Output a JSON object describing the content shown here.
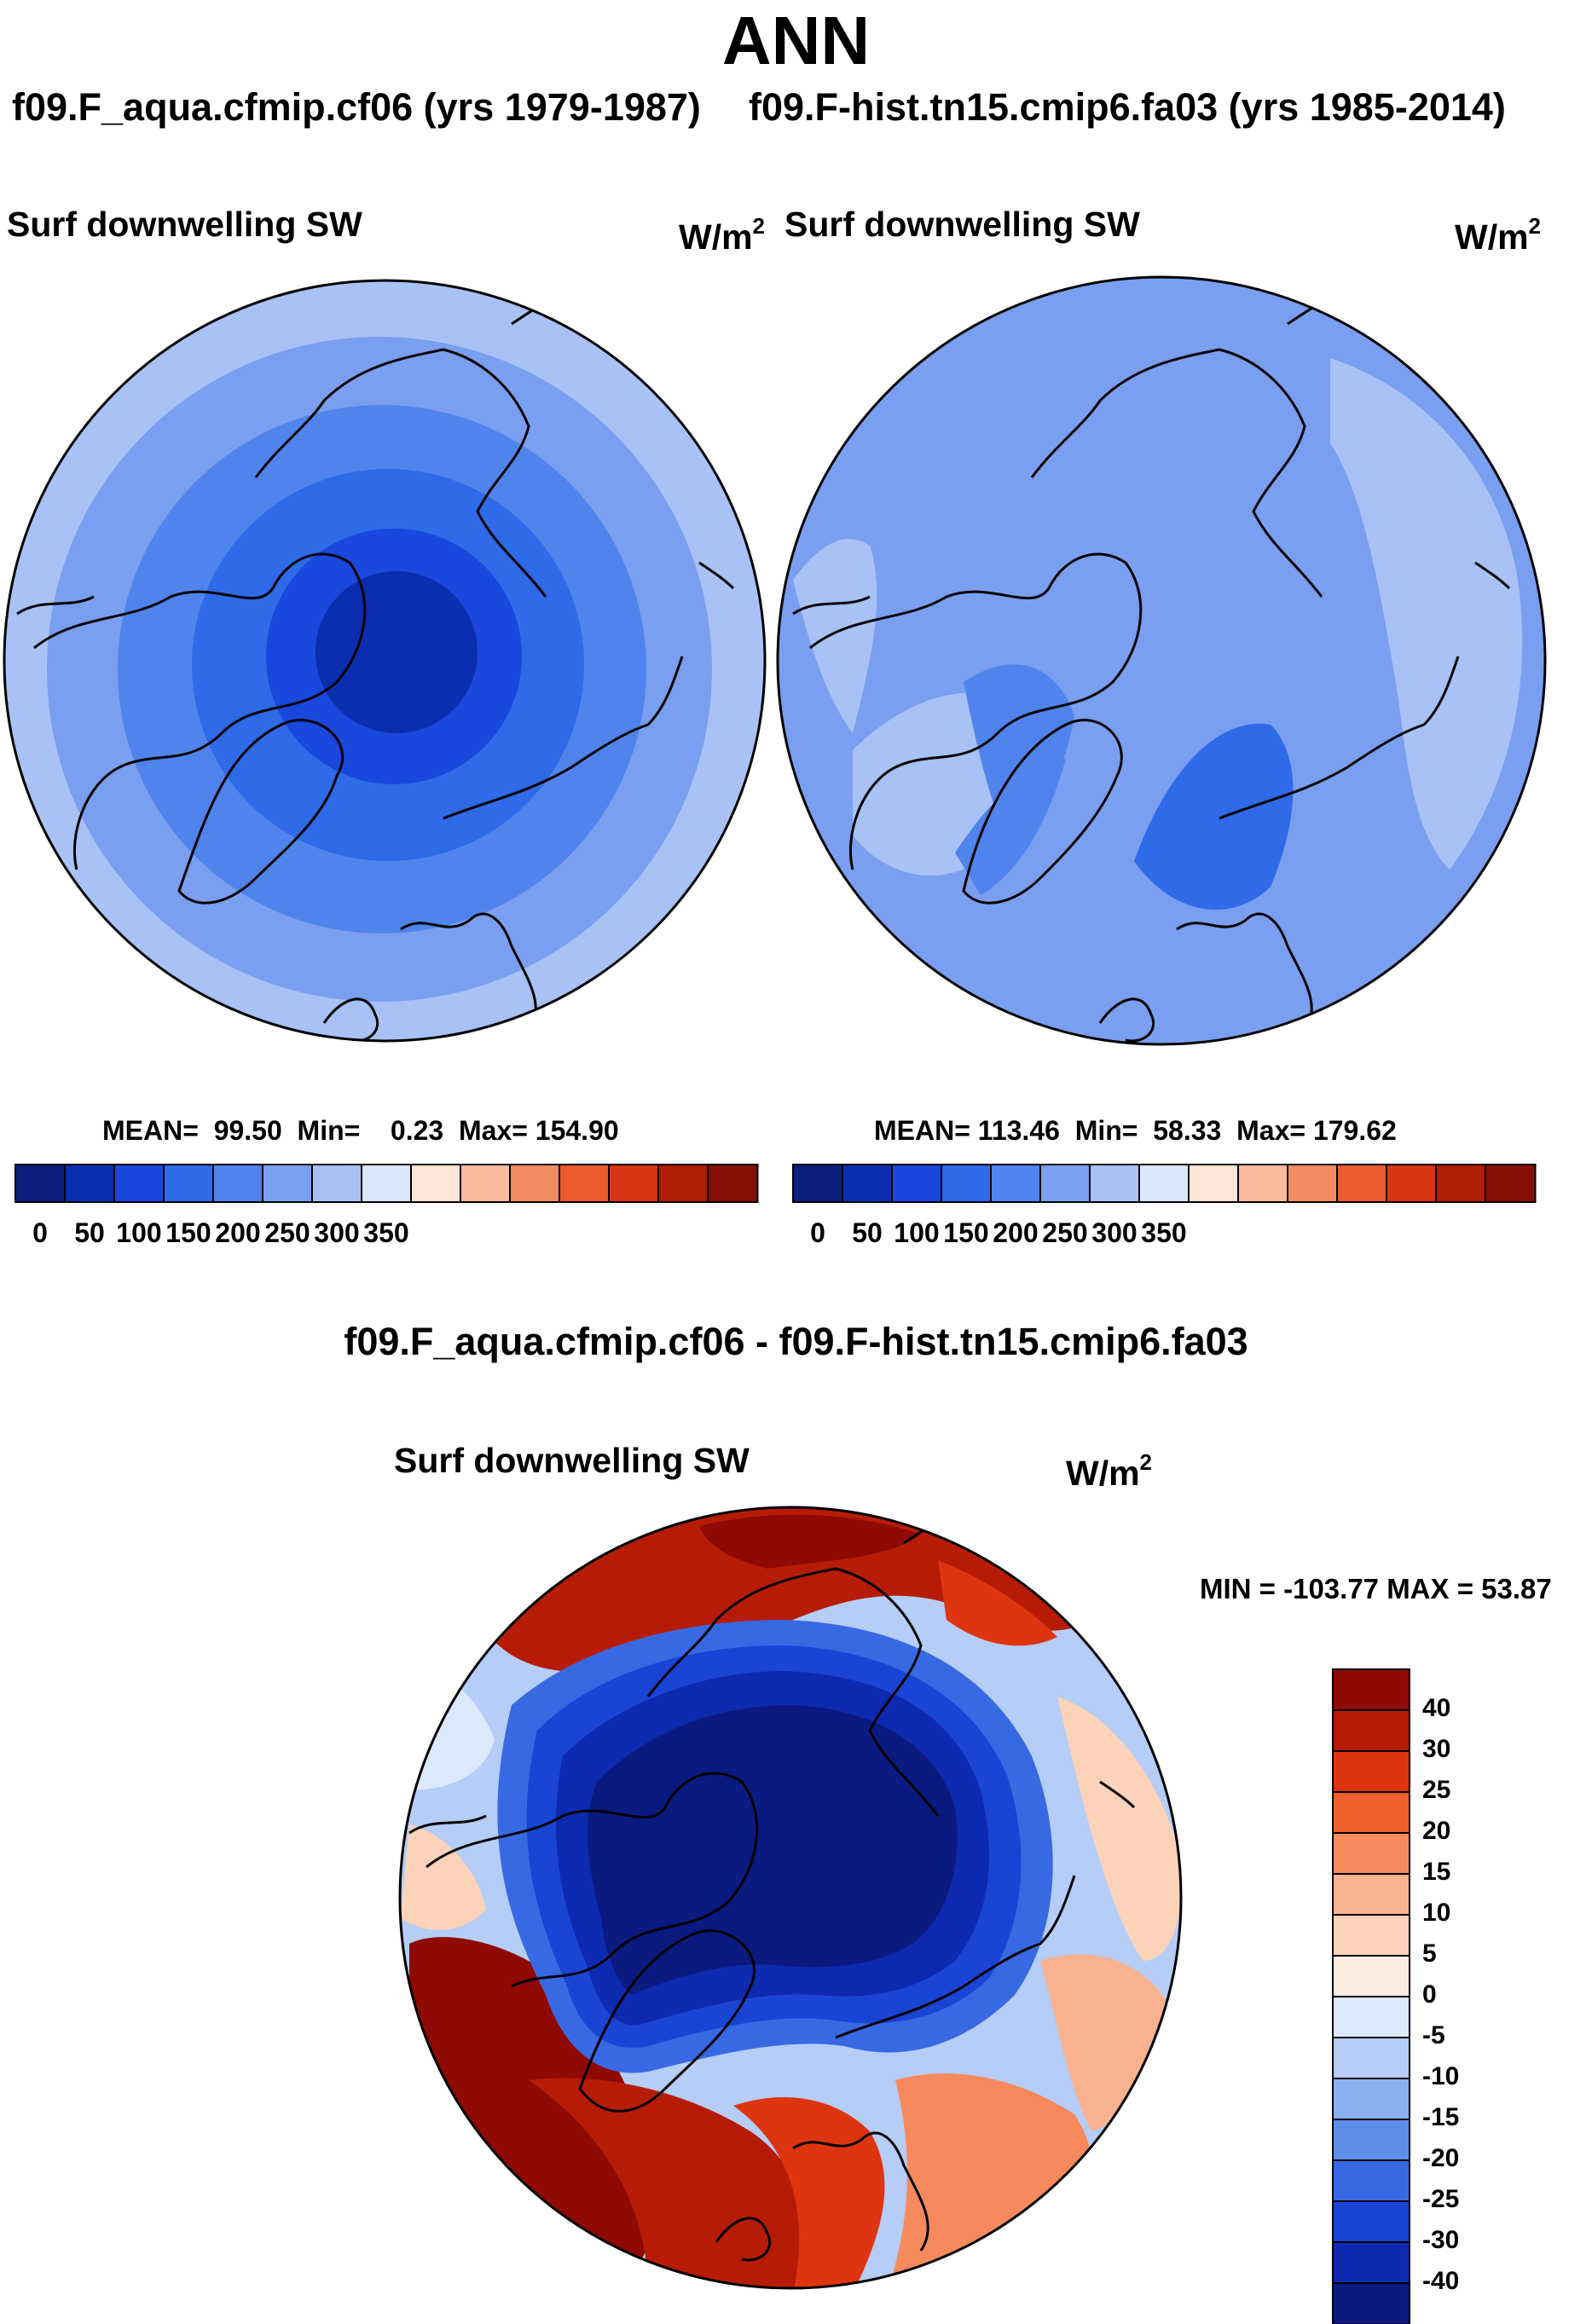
{
  "page": {
    "title": "ANN",
    "diff_title": "f09.F_aqua.cfmip.cf06 - f09.F-hist.tn15.cmip6.fa03"
  },
  "panels": {
    "left": {
      "title": "f09.F_aqua.cfmip.cf06 (yrs 1979-1987)",
      "var": "Surf downwelling SW",
      "units": "W/m",
      "units_exp": "2",
      "mean": "99.50",
      "min": "0.23",
      "max": "154.90"
    },
    "right": {
      "title": "f09.F-hist.tn15.cmip6.fa03 (yrs 1985-2014)",
      "var": "Surf downwelling SW",
      "units": "W/m",
      "units_exp": "2",
      "mean": "113.46",
      "min": "58.33",
      "max": "179.62"
    },
    "diff": {
      "var": "Surf downwelling SW",
      "units": "W/m",
      "units_exp": "2",
      "minmax": "MIN = -103.77 MAX =  53.87"
    }
  },
  "labels": {
    "mean": "MEAN=",
    "min": "Min=",
    "max": "Max="
  },
  "colorbar_abs": {
    "ticks": [
      "0",
      "50",
      "100",
      "150",
      "200",
      "250",
      "300",
      "350"
    ],
    "colors": [
      "#0b1f7c",
      "#0b2eb0",
      "#1a47dc",
      "#2f6ae8",
      "#5084ec",
      "#7a9ff0",
      "#a9c2f5",
      "#dbe7fb",
      "#fde5d7",
      "#f9bb9c",
      "#f38b62",
      "#ec5a2d",
      "#d83514",
      "#b01d05",
      "#861004"
    ]
  },
  "colorbar_diff": {
    "ticks": [
      "40",
      "30",
      "25",
      "20",
      "15",
      "10",
      "5",
      "0",
      "-5",
      "-10",
      "-15",
      "-20",
      "-25",
      "-30",
      "-40"
    ],
    "colors": [
      "#8e0a03",
      "#b61c05",
      "#de3510",
      "#f05e2c",
      "#f68a5c",
      "#f9b28f",
      "#fcd2b8",
      "#fdece0",
      "#dce8fb",
      "#b5cdf7",
      "#8cb0f1",
      "#5f8dea",
      "#3869e3",
      "#1a44d4",
      "#0e2ab0",
      "#0a1a80"
    ]
  },
  "chart_data": [
    {
      "type": "heatmap",
      "projection": "north polar stereographic",
      "title": "Surf downwelling SW",
      "case": "f09.F_aqua.cfmip.cf06 (yrs 1979-1987)",
      "units": "W/m^2",
      "mean": 99.5,
      "min": 0.23,
      "max": 154.9,
      "levels": [
        0,
        50,
        100,
        150,
        200,
        250,
        300,
        350
      ]
    },
    {
      "type": "heatmap",
      "projection": "north polar stereographic",
      "title": "Surf downwelling SW",
      "case": "f09.F-hist.tn15.cmip6.fa03 (yrs 1985-2014)",
      "units": "W/m^2",
      "mean": 113.46,
      "min": 58.33,
      "max": 179.62,
      "levels": [
        0,
        50,
        100,
        150,
        200,
        250,
        300,
        350
      ]
    },
    {
      "type": "heatmap",
      "projection": "north polar stereographic",
      "title": "Surf downwelling SW",
      "case": "f09.F_aqua.cfmip.cf06 - f09.F-hist.tn15.cmip6.fa03",
      "units": "W/m^2",
      "min": -103.77,
      "max": 53.87,
      "levels": [
        -40,
        -30,
        -25,
        -20,
        -15,
        -10,
        -5,
        0,
        5,
        10,
        15,
        20,
        25,
        30,
        40
      ]
    }
  ]
}
